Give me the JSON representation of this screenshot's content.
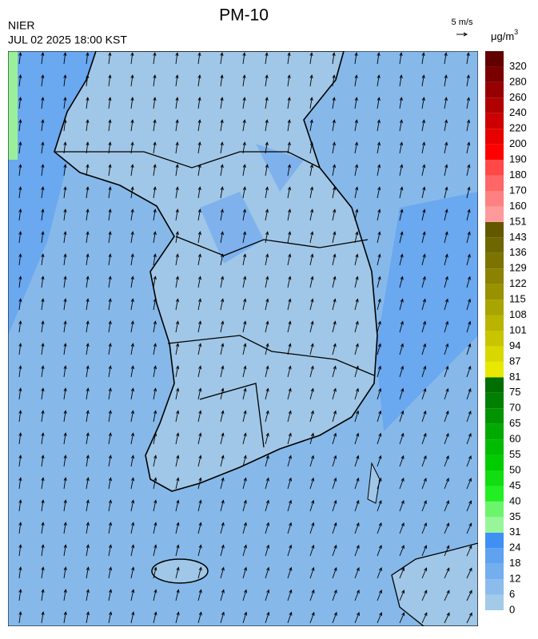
{
  "header": {
    "title": "PM-10",
    "agency": "NIER",
    "datetime": "JUL 02 2025 18:00 KST",
    "wind_scale": "5 m/s"
  },
  "legend": {
    "unit": "μg/m",
    "unit_sup": "3",
    "levels": [
      0,
      6,
      12,
      18,
      24,
      31,
      35,
      40,
      45,
      50,
      55,
      60,
      65,
      70,
      75,
      81,
      87,
      94,
      101,
      108,
      115,
      122,
      129,
      136,
      143,
      151,
      160,
      170,
      180,
      190,
      200,
      220,
      240,
      260,
      280,
      320
    ],
    "colors": [
      "#a3cbe8",
      "#8cbcec",
      "#74aeee",
      "#5ea2f0",
      "#3f90f4",
      "#99f599",
      "#6cf56c",
      "#22ee22",
      "#11dd11",
      "#00cc00",
      "#00bb00",
      "#00aa00",
      "#009400",
      "#008000",
      "#006e00",
      "#e8e800",
      "#d8d800",
      "#c8c400",
      "#b8b400",
      "#a8a400",
      "#999100",
      "#8a8200",
      "#7c7300",
      "#6e6600",
      "#635800",
      "#ff9a9a",
      "#ff8080",
      "#ff6666",
      "#ff4848",
      "#ff0000",
      "#e60000",
      "#cc0000",
      "#b00000",
      "#960000",
      "#7a0000",
      "#620000"
    ]
  }
}
